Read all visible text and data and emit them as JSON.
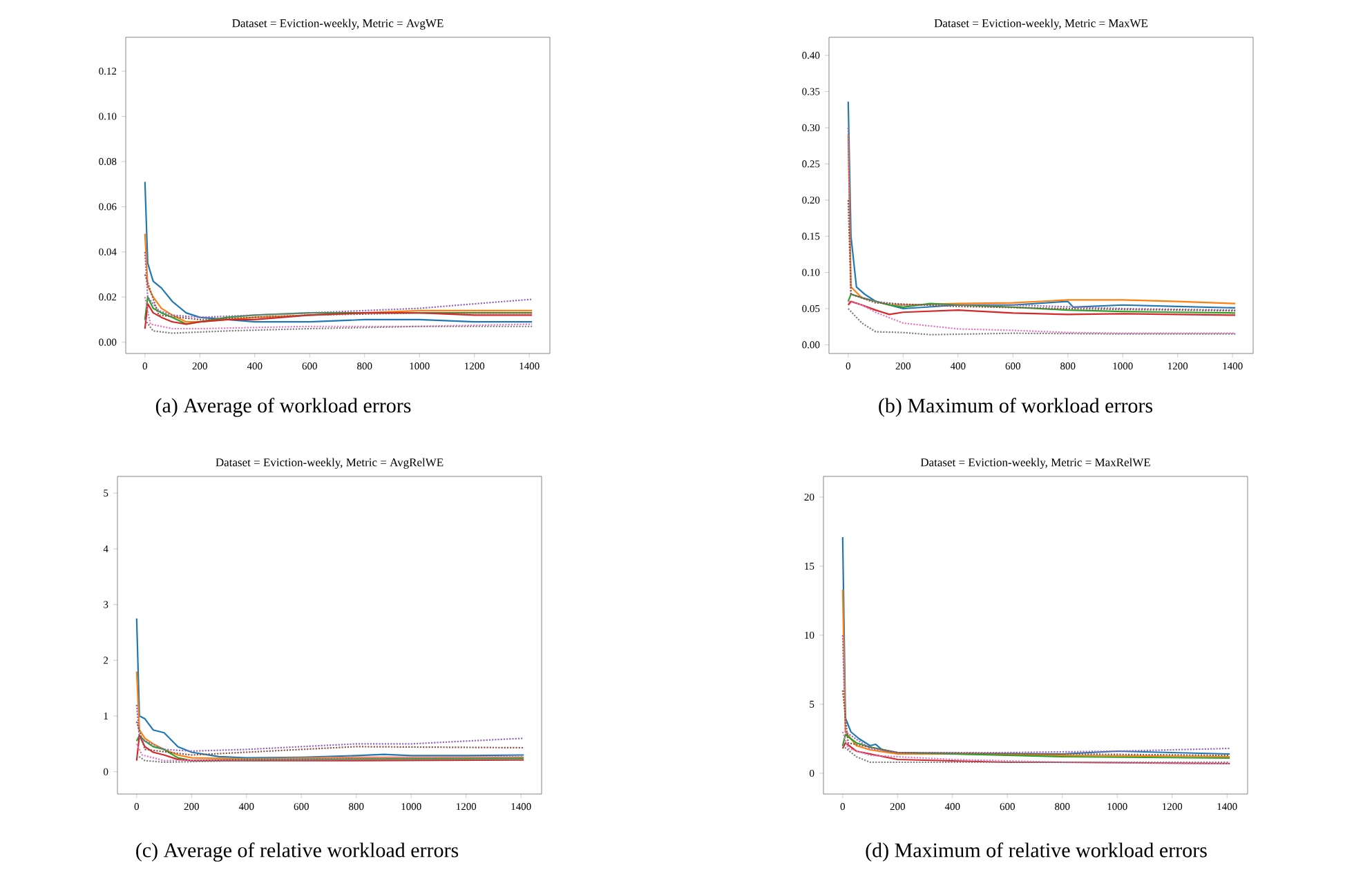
{
  "chart_data": [
    {
      "type": "line",
      "title": "Dataset = Eviction-weekly, Metric = AvgWE",
      "annotations": [
        "(a) Average of workload errors"
      ],
      "xlim": [
        -70,
        1475
      ],
      "xticks": [
        0,
        200,
        400,
        600,
        800,
        1000,
        1200,
        1400
      ],
      "ylim": [
        -0.005,
        0.135
      ],
      "yticks": [
        {
          "value": 0,
          "label": "0.00"
        },
        {
          "value": 0.02,
          "label": "0.02"
        },
        {
          "value": 0.04,
          "label": "0.04"
        },
        {
          "value": 0.06,
          "label": "0.06"
        },
        {
          "value": 0.08,
          "label": "0.08"
        },
        {
          "value": 0.1,
          "label": "0.10"
        },
        {
          "value": 0.12,
          "label": "0.12"
        }
      ],
      "series": [
        {
          "color": "#1f77b4",
          "line_style": "solid",
          "x": [
            0,
            10,
            30,
            60,
            100,
            150,
            200,
            300,
            400,
            600,
            800,
            1000,
            1200,
            1410
          ],
          "values": [
            0.071,
            0.035,
            0.027,
            0.024,
            0.018,
            0.013,
            0.011,
            0.01,
            0.009,
            0.009,
            0.01,
            0.01,
            0.009,
            0.009
          ]
        },
        {
          "color": "#ff7f0e",
          "line_style": "solid",
          "x": [
            0,
            10,
            30,
            60,
            100,
            150,
            200,
            300,
            400,
            600,
            800,
            1000,
            1200,
            1410
          ],
          "values": [
            0.048,
            0.025,
            0.02,
            0.015,
            0.012,
            0.009,
            0.009,
            0.01,
            0.011,
            0.012,
            0.013,
            0.014,
            0.014,
            0.014
          ]
        },
        {
          "color": "#2ca02c",
          "line_style": "solid",
          "x": [
            0,
            10,
            30,
            60,
            100,
            150,
            200,
            300,
            400,
            600,
            800,
            1000,
            1200,
            1410
          ],
          "values": [
            0.01,
            0.02,
            0.015,
            0.013,
            0.011,
            0.008,
            0.009,
            0.011,
            0.012,
            0.013,
            0.013,
            0.013,
            0.013,
            0.013
          ]
        },
        {
          "color": "#d62728",
          "line_style": "solid",
          "x": [
            0,
            10,
            30,
            60,
            100,
            150,
            200,
            300,
            400,
            600,
            800,
            1000,
            1200,
            1410
          ],
          "values": [
            0.006,
            0.017,
            0.013,
            0.011,
            0.009,
            0.008,
            0.009,
            0.01,
            0.01,
            0.012,
            0.013,
            0.013,
            0.012,
            0.012
          ]
        },
        {
          "color": "#9467bd",
          "line_style": "dotted",
          "x": [
            0,
            10,
            50,
            100,
            200,
            400,
            600,
            800,
            1000,
            1200,
            1410
          ],
          "values": [
            0.04,
            0.02,
            0.014,
            0.012,
            0.011,
            0.012,
            0.013,
            0.014,
            0.015,
            0.017,
            0.019
          ]
        },
        {
          "color": "#8c564b",
          "line_style": "dotted",
          "x": [
            0,
            50,
            200,
            600,
            1000,
            1410
          ],
          "values": [
            0.03,
            0.012,
            0.01,
            0.012,
            0.013,
            0.013
          ]
        },
        {
          "color": "#e377c2",
          "line_style": "dotted",
          "x": [
            0,
            20,
            100,
            200,
            600,
            1000,
            1410
          ],
          "values": [
            0.02,
            0.008,
            0.006,
            0.006,
            0.007,
            0.007,
            0.008
          ]
        },
        {
          "color": "#7f7f7f",
          "line_style": "dotted",
          "x": [
            0,
            30,
            100,
            300,
            600,
            1000,
            1410
          ],
          "values": [
            0.01,
            0.005,
            0.004,
            0.005,
            0.006,
            0.007,
            0.007
          ]
        }
      ]
    },
    {
      "type": "line",
      "title": "Dataset = Eviction-weekly, Metric = MaxWE",
      "annotations": [
        "(b) Maximum of workload errors"
      ],
      "xlim": [
        -70,
        1475
      ],
      "xticks": [
        0,
        200,
        400,
        600,
        800,
        1000,
        1200,
        1400
      ],
      "ylim": [
        -0.012,
        0.425
      ],
      "yticks": [
        {
          "value": 0,
          "label": "0.00"
        },
        {
          "value": 0.05,
          "label": "0.05"
        },
        {
          "value": 0.1,
          "label": "0.10"
        },
        {
          "value": 0.15,
          "label": "0.15"
        },
        {
          "value": 0.2,
          "label": "0.20"
        },
        {
          "value": 0.25,
          "label": "0.25"
        },
        {
          "value": 0.3,
          "label": "0.30"
        },
        {
          "value": 0.35,
          "label": "0.35"
        },
        {
          "value": 0.4,
          "label": "0.40"
        }
      ],
      "series": [
        {
          "color": "#1f77b4",
          "line_style": "solid",
          "x": [
            0,
            10,
            30,
            60,
            100,
            150,
            200,
            400,
            600,
            800,
            820,
            1000,
            1200,
            1410
          ],
          "values": [
            0.336,
            0.15,
            0.08,
            0.07,
            0.06,
            0.055,
            0.05,
            0.055,
            0.055,
            0.06,
            0.052,
            0.055,
            0.053,
            0.051
          ]
        },
        {
          "color": "#ff7f0e",
          "line_style": "solid",
          "x": [
            0,
            10,
            50,
            100,
            150,
            200,
            400,
            600,
            800,
            1000,
            1200,
            1410
          ],
          "values": [
            0.29,
            0.08,
            0.065,
            0.06,
            0.055,
            0.055,
            0.057,
            0.058,
            0.062,
            0.062,
            0.06,
            0.057
          ]
        },
        {
          "color": "#2ca02c",
          "line_style": "solid",
          "x": [
            0,
            10,
            50,
            100,
            150,
            200,
            300,
            400,
            600,
            800,
            1000,
            1200,
            1410
          ],
          "values": [
            0.06,
            0.07,
            0.065,
            0.06,
            0.055,
            0.052,
            0.057,
            0.055,
            0.052,
            0.048,
            0.046,
            0.045,
            0.044
          ]
        },
        {
          "color": "#d62728",
          "line_style": "solid",
          "x": [
            0,
            10,
            50,
            100,
            150,
            200,
            400,
            600,
            800,
            1000,
            1200,
            1410
          ],
          "values": [
            0.055,
            0.06,
            0.055,
            0.048,
            0.042,
            0.045,
            0.048,
            0.044,
            0.042,
            0.043,
            0.042,
            0.041
          ]
        },
        {
          "color": "#9467bd",
          "line_style": "dotted",
          "x": [
            0,
            10,
            100,
            200,
            600,
            1000,
            1410
          ],
          "values": [
            0.3,
            0.07,
            0.06,
            0.055,
            0.055,
            0.05,
            0.048
          ]
        },
        {
          "color": "#8c564b",
          "line_style": "dotted",
          "x": [
            0,
            10,
            100,
            400,
            800,
            1410
          ],
          "values": [
            0.2,
            0.07,
            0.058,
            0.053,
            0.05,
            0.047
          ]
        },
        {
          "color": "#e377c2",
          "line_style": "dotted",
          "x": [
            0,
            50,
            100,
            200,
            400,
            600,
            800,
            1000,
            1410
          ],
          "values": [
            0.06,
            0.055,
            0.045,
            0.03,
            0.022,
            0.02,
            0.017,
            0.016,
            0.016
          ]
        },
        {
          "color": "#7f7f7f",
          "line_style": "dotted",
          "x": [
            0,
            50,
            100,
            200,
            300,
            600,
            1000,
            1410
          ],
          "values": [
            0.05,
            0.03,
            0.018,
            0.017,
            0.014,
            0.016,
            0.015,
            0.015
          ]
        }
      ]
    },
    {
      "type": "line",
      "title": "Dataset = Eviction-weekly, Metric = AvgRelWE",
      "annotations": [
        "(c) Average of relative workload errors"
      ],
      "xlim": [
        -70,
        1475
      ],
      "xticks": [
        0,
        200,
        400,
        600,
        800,
        1000,
        1200,
        1400
      ],
      "ylim": [
        -0.4,
        5.3
      ],
      "yticks": [
        0,
        1,
        2,
        3,
        4,
        5
      ],
      "series": [
        {
          "color": "#1f77b4",
          "line_style": "solid",
          "x": [
            0,
            10,
            30,
            60,
            100,
            150,
            200,
            300,
            400,
            600,
            800,
            900,
            1000,
            1200,
            1410
          ],
          "values": [
            2.75,
            1.0,
            0.95,
            0.75,
            0.7,
            0.45,
            0.35,
            0.27,
            0.25,
            0.26,
            0.29,
            0.31,
            0.29,
            0.29,
            0.3
          ]
        },
        {
          "color": "#ff7f0e",
          "line_style": "solid",
          "x": [
            0,
            10,
            30,
            60,
            100,
            150,
            200,
            400,
            800,
            1410
          ],
          "values": [
            1.8,
            0.75,
            0.6,
            0.5,
            0.4,
            0.3,
            0.25,
            0.23,
            0.26,
            0.26
          ]
        },
        {
          "color": "#2ca02c",
          "line_style": "solid",
          "x": [
            0,
            10,
            30,
            60,
            100,
            150,
            200,
            400,
            800,
            1410
          ],
          "values": [
            0.55,
            0.65,
            0.55,
            0.45,
            0.4,
            0.25,
            0.2,
            0.22,
            0.23,
            0.24
          ]
        },
        {
          "color": "#d62728",
          "line_style": "solid",
          "x": [
            0,
            10,
            30,
            60,
            100,
            150,
            200,
            400,
            800,
            1410
          ],
          "values": [
            0.2,
            0.65,
            0.45,
            0.35,
            0.3,
            0.22,
            0.2,
            0.2,
            0.2,
            0.21
          ]
        },
        {
          "color": "#9467bd",
          "line_style": "dotted",
          "x": [
            0,
            10,
            100,
            200,
            400,
            600,
            800,
            1000,
            1200,
            1410
          ],
          "values": [
            1.2,
            0.6,
            0.4,
            0.37,
            0.4,
            0.45,
            0.5,
            0.5,
            0.55,
            0.6
          ]
        },
        {
          "color": "#8c564b",
          "line_style": "dotted",
          "x": [
            0,
            30,
            200,
            600,
            800,
            1410
          ],
          "values": [
            0.9,
            0.4,
            0.3,
            0.4,
            0.45,
            0.43
          ]
        },
        {
          "color": "#e377c2",
          "line_style": "dotted",
          "x": [
            0,
            20,
            100,
            400,
            800,
            1410
          ],
          "values": [
            0.5,
            0.3,
            0.2,
            0.22,
            0.25,
            0.27
          ]
        },
        {
          "color": "#7f7f7f",
          "line_style": "dotted",
          "x": [
            0,
            30,
            100,
            400,
            800,
            1410
          ],
          "values": [
            0.3,
            0.2,
            0.17,
            0.2,
            0.22,
            0.22
          ]
        }
      ]
    },
    {
      "type": "line",
      "title": "Dataset = Eviction-weekly, Metric = MaxRelWE",
      "annotations": [
        "(d) Maximum of relative workload errors"
      ],
      "xlim": [
        -70,
        1475
      ],
      "xticks": [
        0,
        200,
        400,
        600,
        800,
        1000,
        1200,
        1400
      ],
      "ylim": [
        -1.5,
        21.5
      ],
      "yticks": [
        0,
        5,
        10,
        15,
        20
      ],
      "series": [
        {
          "color": "#1f77b4",
          "line_style": "solid",
          "x": [
            0,
            10,
            30,
            60,
            100,
            120,
            150,
            200,
            400,
            800,
            1000,
            1200,
            1410
          ],
          "values": [
            17.1,
            4.0,
            3.0,
            2.5,
            2.0,
            2.1,
            1.6,
            1.5,
            1.4,
            1.4,
            1.6,
            1.5,
            1.4
          ]
        },
        {
          "color": "#ff7f0e",
          "line_style": "solid",
          "x": [
            0,
            10,
            50,
            100,
            200,
            400,
            800,
            1410
          ],
          "values": [
            13.3,
            3.0,
            2.0,
            1.7,
            1.4,
            1.4,
            1.3,
            1.2
          ]
        },
        {
          "color": "#2ca02c",
          "line_style": "solid",
          "x": [
            0,
            10,
            50,
            100,
            200,
            400,
            800,
            1410
          ],
          "values": [
            2.0,
            2.8,
            2.2,
            1.9,
            1.5,
            1.4,
            1.2,
            1.1
          ]
        },
        {
          "color": "#d62728",
          "line_style": "solid",
          "x": [
            0,
            10,
            50,
            100,
            200,
            400,
            600,
            800,
            1410
          ],
          "values": [
            1.8,
            2.2,
            1.6,
            1.4,
            1.0,
            0.9,
            0.8,
            0.8,
            0.7
          ]
        },
        {
          "color": "#9467bd",
          "line_style": "dotted",
          "x": [
            0,
            10,
            100,
            200,
            600,
            1000,
            1410
          ],
          "values": [
            10,
            3,
            1.8,
            1.5,
            1.5,
            1.6,
            1.8
          ]
        },
        {
          "color": "#8c564b",
          "line_style": "dotted",
          "x": [
            0,
            20,
            200,
            800,
            1410
          ],
          "values": [
            6,
            2.2,
            1.5,
            1.4,
            1.3
          ]
        },
        {
          "color": "#e377c2",
          "line_style": "dotted",
          "x": [
            0,
            20,
            100,
            400,
            800,
            1410
          ],
          "values": [
            3,
            1.8,
            1.3,
            1.0,
            0.8,
            0.7
          ]
        },
        {
          "color": "#7f7f7f",
          "line_style": "dotted",
          "x": [
            0,
            50,
            100,
            400,
            1410
          ],
          "values": [
            2,
            1.2,
            0.8,
            0.8,
            0.8
          ]
        }
      ]
    }
  ]
}
